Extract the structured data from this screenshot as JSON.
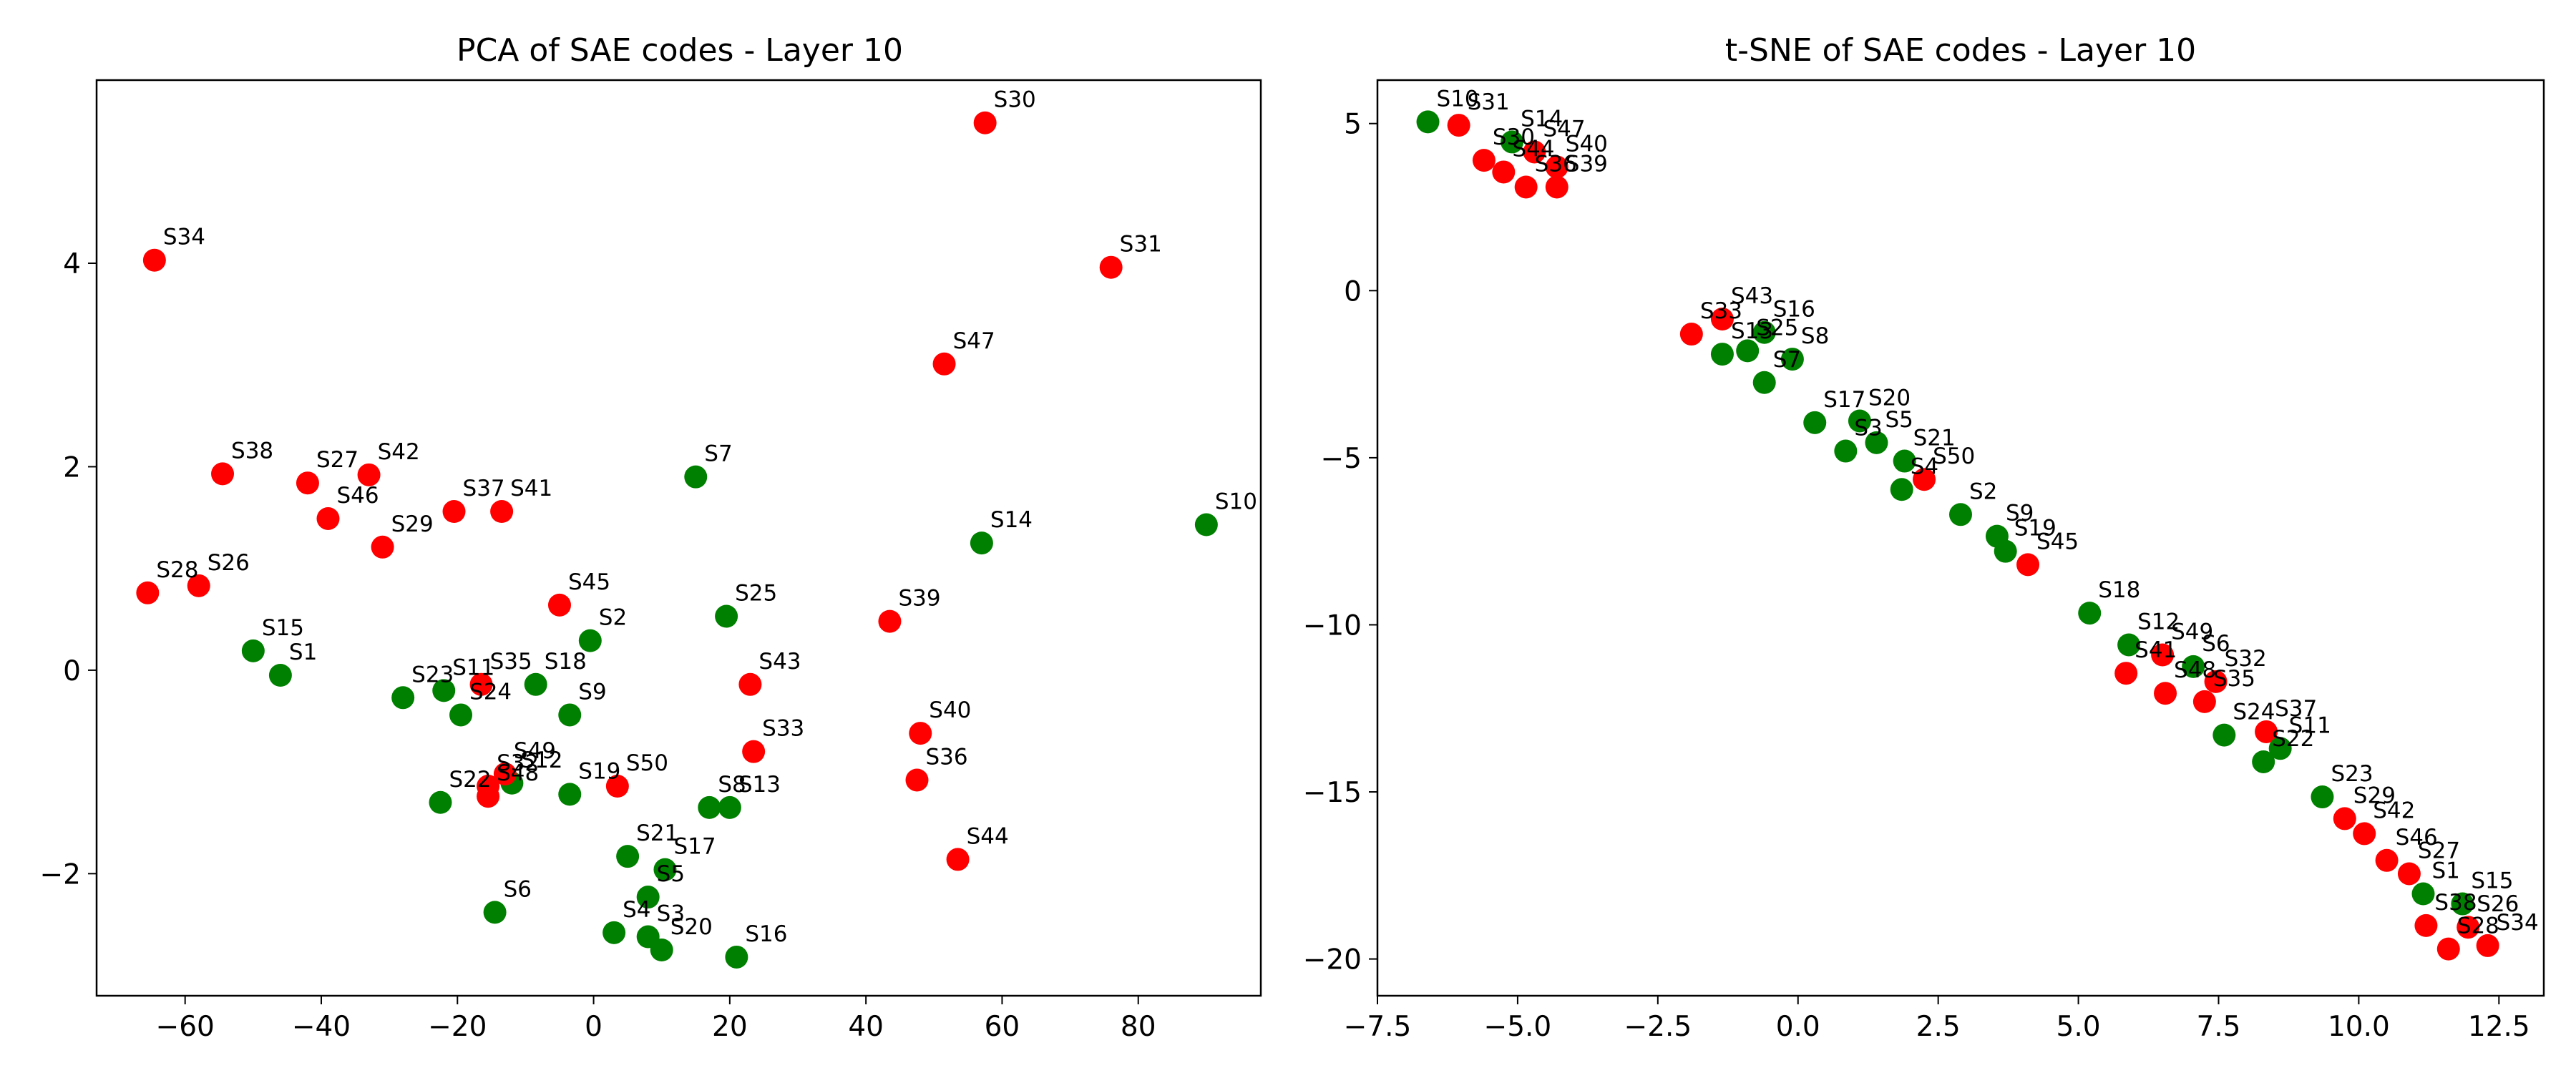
{
  "colors": {
    "green_class": "#008000",
    "red_class": "#ff0000"
  },
  "chart_data": [
    {
      "type": "scatter",
      "title": "PCA of SAE codes - Layer 10",
      "xlabel": "",
      "ylabel": "",
      "xlim": [
        -73,
        98
      ],
      "ylim": [
        -3.2,
        5.8
      ],
      "xticks": [
        -60,
        -40,
        -20,
        0,
        20,
        40,
        60,
        80
      ],
      "xtick_labels": [
        "−60",
        "−40",
        "−20",
        "0",
        "20",
        "40",
        "60",
        "80"
      ],
      "yticks": [
        -2,
        0,
        2,
        4
      ],
      "ytick_labels": [
        "−2",
        "0",
        "2",
        "4"
      ],
      "grid": false,
      "points": [
        {
          "label": "S1",
          "x": -46,
          "y": -0.05,
          "color": "green"
        },
        {
          "label": "S2",
          "x": -0.5,
          "y": 0.29,
          "color": "green"
        },
        {
          "label": "S3",
          "x": 8,
          "y": -2.62,
          "color": "green"
        },
        {
          "label": "S4",
          "x": 3,
          "y": -2.58,
          "color": "green"
        },
        {
          "label": "S5",
          "x": 8,
          "y": -2.23,
          "color": "green"
        },
        {
          "label": "S6",
          "x": -14.5,
          "y": -2.38,
          "color": "green"
        },
        {
          "label": "S7",
          "x": 15,
          "y": 1.9,
          "color": "green"
        },
        {
          "label": "S8",
          "x": 17,
          "y": -1.35,
          "color": "green"
        },
        {
          "label": "S9",
          "x": -3.5,
          "y": -0.44,
          "color": "green"
        },
        {
          "label": "S10",
          "x": 90,
          "y": 1.43,
          "color": "green"
        },
        {
          "label": "S11",
          "x": -22,
          "y": -0.2,
          "color": "green"
        },
        {
          "label": "S12",
          "x": -12,
          "y": -1.11,
          "color": "green"
        },
        {
          "label": "S13",
          "x": 20,
          "y": -1.35,
          "color": "green"
        },
        {
          "label": "S14",
          "x": 57,
          "y": 1.25,
          "color": "green"
        },
        {
          "label": "S15",
          "x": -50,
          "y": 0.19,
          "color": "green"
        },
        {
          "label": "S16",
          "x": 21,
          "y": -2.82,
          "color": "green"
        },
        {
          "label": "S17",
          "x": 10.5,
          "y": -1.96,
          "color": "green"
        },
        {
          "label": "S18",
          "x": -8.5,
          "y": -0.14,
          "color": "green"
        },
        {
          "label": "S19",
          "x": -3.5,
          "y": -1.22,
          "color": "green"
        },
        {
          "label": "S20",
          "x": 10,
          "y": -2.75,
          "color": "green"
        },
        {
          "label": "S21",
          "x": 5,
          "y": -1.83,
          "color": "green"
        },
        {
          "label": "S22",
          "x": -22.5,
          "y": -1.3,
          "color": "green"
        },
        {
          "label": "S23",
          "x": -28,
          "y": -0.27,
          "color": "green"
        },
        {
          "label": "S24",
          "x": -19.5,
          "y": -0.44,
          "color": "green"
        },
        {
          "label": "S25",
          "x": 19.5,
          "y": 0.53,
          "color": "green"
        },
        {
          "label": "S26",
          "x": -58,
          "y": 0.83,
          "color": "red"
        },
        {
          "label": "S27",
          "x": -42,
          "y": 1.84,
          "color": "red"
        },
        {
          "label": "S28",
          "x": -65.5,
          "y": 0.76,
          "color": "red"
        },
        {
          "label": "S29",
          "x": -31,
          "y": 1.21,
          "color": "red"
        },
        {
          "label": "S30",
          "x": 57.5,
          "y": 5.38,
          "color": "red"
        },
        {
          "label": "S31",
          "x": 76,
          "y": 3.96,
          "color": "red"
        },
        {
          "label": "S32",
          "x": -15.5,
          "y": -1.14,
          "color": "red"
        },
        {
          "label": "S33",
          "x": 23.5,
          "y": -0.8,
          "color": "red"
        },
        {
          "label": "S34",
          "x": -64.5,
          "y": 4.03,
          "color": "red"
        },
        {
          "label": "S35",
          "x": -16.5,
          "y": -0.14,
          "color": "red"
        },
        {
          "label": "S36",
          "x": 47.5,
          "y": -1.08,
          "color": "red"
        },
        {
          "label": "S37",
          "x": -20.5,
          "y": 1.56,
          "color": "red"
        },
        {
          "label": "S38",
          "x": -54.5,
          "y": 1.93,
          "color": "red"
        },
        {
          "label": "S39",
          "x": 43.5,
          "y": 0.48,
          "color": "red"
        },
        {
          "label": "S40",
          "x": 48,
          "y": -0.62,
          "color": "red"
        },
        {
          "label": "S41",
          "x": -13.5,
          "y": 1.56,
          "color": "red"
        },
        {
          "label": "S42",
          "x": -33,
          "y": 1.92,
          "color": "red"
        },
        {
          "label": "S43",
          "x": 23,
          "y": -0.14,
          "color": "red"
        },
        {
          "label": "S44",
          "x": 53.5,
          "y": -1.86,
          "color": "red"
        },
        {
          "label": "S45",
          "x": -5,
          "y": 0.64,
          "color": "red"
        },
        {
          "label": "S46",
          "x": -39,
          "y": 1.49,
          "color": "red"
        },
        {
          "label": "S47",
          "x": 51.5,
          "y": 3.01,
          "color": "red"
        },
        {
          "label": "S48",
          "x": -15.5,
          "y": -1.24,
          "color": "red"
        },
        {
          "label": "S49",
          "x": -13,
          "y": -1.02,
          "color": "red"
        },
        {
          "label": "S50",
          "x": 3.5,
          "y": -1.14,
          "color": "red"
        }
      ]
    },
    {
      "type": "scatter",
      "title": "t-SNE of SAE codes - Layer 10",
      "xlabel": "",
      "ylabel": "",
      "xlim": [
        -7.5,
        13.3
      ],
      "ylim": [
        -21.1,
        6.3
      ],
      "xticks": [
        -7.5,
        -5.0,
        -2.5,
        0.0,
        2.5,
        5.0,
        7.5,
        10.0,
        12.5
      ],
      "xtick_labels": [
        "−7.5",
        "−5.0",
        "−2.5",
        "0.0",
        "2.5",
        "5.0",
        "7.5",
        "10.0",
        "12.5"
      ],
      "yticks": [
        5,
        0,
        -5,
        -10,
        -15,
        -20
      ],
      "ytick_labels": [
        "5",
        "0",
        "−5",
        "−10",
        "−15",
        "−20"
      ],
      "grid": false,
      "points": [
        {
          "label": "S10",
          "x": -6.6,
          "y": 5.05,
          "color": "green"
        },
        {
          "label": "S31",
          "x": -6.05,
          "y": 4.95,
          "color": "red"
        },
        {
          "label": "S14",
          "x": -5.1,
          "y": 4.45,
          "color": "green"
        },
        {
          "label": "S47",
          "x": -4.7,
          "y": 4.15,
          "color": "red"
        },
        {
          "label": "S30",
          "x": -5.6,
          "y": 3.9,
          "color": "red"
        },
        {
          "label": "S44",
          "x": -5.25,
          "y": 3.55,
          "color": "red"
        },
        {
          "label": "S40",
          "x": -4.3,
          "y": 3.7,
          "color": "red"
        },
        {
          "label": "S36",
          "x": -4.85,
          "y": 3.1,
          "color": "red"
        },
        {
          "label": "S39",
          "x": -4.3,
          "y": 3.1,
          "color": "red"
        },
        {
          "label": "S43",
          "x": -1.35,
          "y": -0.85,
          "color": "red"
        },
        {
          "label": "S33",
          "x": -1.9,
          "y": -1.3,
          "color": "red"
        },
        {
          "label": "S16",
          "x": -0.6,
          "y": -1.25,
          "color": "green"
        },
        {
          "label": "S13",
          "x": -1.35,
          "y": -1.9,
          "color": "green"
        },
        {
          "label": "S25",
          "x": -0.9,
          "y": -1.8,
          "color": "green"
        },
        {
          "label": "S8",
          "x": -0.1,
          "y": -2.05,
          "color": "green"
        },
        {
          "label": "S7",
          "x": -0.6,
          "y": -2.75,
          "color": "green"
        },
        {
          "label": "S17",
          "x": 0.3,
          "y": -3.95,
          "color": "green"
        },
        {
          "label": "S20",
          "x": 1.1,
          "y": -3.9,
          "color": "green"
        },
        {
          "label": "S3",
          "x": 0.85,
          "y": -4.8,
          "color": "green"
        },
        {
          "label": "S5",
          "x": 1.4,
          "y": -4.55,
          "color": "green"
        },
        {
          "label": "S21",
          "x": 1.9,
          "y": -5.1,
          "color": "green"
        },
        {
          "label": "S50",
          "x": 2.25,
          "y": -5.65,
          "color": "red"
        },
        {
          "label": "S4",
          "x": 1.85,
          "y": -5.95,
          "color": "green"
        },
        {
          "label": "S2",
          "x": 2.9,
          "y": -6.7,
          "color": "green"
        },
        {
          "label": "S9",
          "x": 3.55,
          "y": -7.35,
          "color": "green"
        },
        {
          "label": "S19",
          "x": 3.7,
          "y": -7.8,
          "color": "green"
        },
        {
          "label": "S45",
          "x": 4.1,
          "y": -8.2,
          "color": "red"
        },
        {
          "label": "S18",
          "x": 5.2,
          "y": -9.65,
          "color": "green"
        },
        {
          "label": "S12",
          "x": 5.9,
          "y": -10.6,
          "color": "green"
        },
        {
          "label": "S49",
          "x": 6.5,
          "y": -10.9,
          "color": "red"
        },
        {
          "label": "S6",
          "x": 7.05,
          "y": -11.25,
          "color": "green"
        },
        {
          "label": "S41",
          "x": 5.85,
          "y": -11.45,
          "color": "red"
        },
        {
          "label": "S32",
          "x": 7.45,
          "y": -11.7,
          "color": "red"
        },
        {
          "label": "S48",
          "x": 6.55,
          "y": -12.05,
          "color": "red"
        },
        {
          "label": "S35",
          "x": 7.25,
          "y": -12.3,
          "color": "red"
        },
        {
          "label": "S37",
          "x": 8.35,
          "y": -13.2,
          "color": "red"
        },
        {
          "label": "S24",
          "x": 7.6,
          "y": -13.3,
          "color": "green"
        },
        {
          "label": "S11",
          "x": 8.6,
          "y": -13.7,
          "color": "green"
        },
        {
          "label": "S22",
          "x": 8.3,
          "y": -14.1,
          "color": "green"
        },
        {
          "label": "S23",
          "x": 9.35,
          "y": -15.15,
          "color": "green"
        },
        {
          "label": "S29",
          "x": 9.75,
          "y": -15.8,
          "color": "red"
        },
        {
          "label": "S42",
          "x": 10.1,
          "y": -16.25,
          "color": "red"
        },
        {
          "label": "S46",
          "x": 10.5,
          "y": -17.05,
          "color": "red"
        },
        {
          "label": "S27",
          "x": 10.9,
          "y": -17.45,
          "color": "red"
        },
        {
          "label": "S1",
          "x": 11.15,
          "y": -18.05,
          "color": "green"
        },
        {
          "label": "S15",
          "x": 11.85,
          "y": -18.35,
          "color": "green"
        },
        {
          "label": "S38",
          "x": 11.2,
          "y": -19.0,
          "color": "red"
        },
        {
          "label": "S26",
          "x": 11.95,
          "y": -19.05,
          "color": "red"
        },
        {
          "label": "S28",
          "x": 11.6,
          "y": -19.7,
          "color": "red"
        },
        {
          "label": "S34",
          "x": 12.3,
          "y": -19.6,
          "color": "red"
        }
      ]
    }
  ]
}
